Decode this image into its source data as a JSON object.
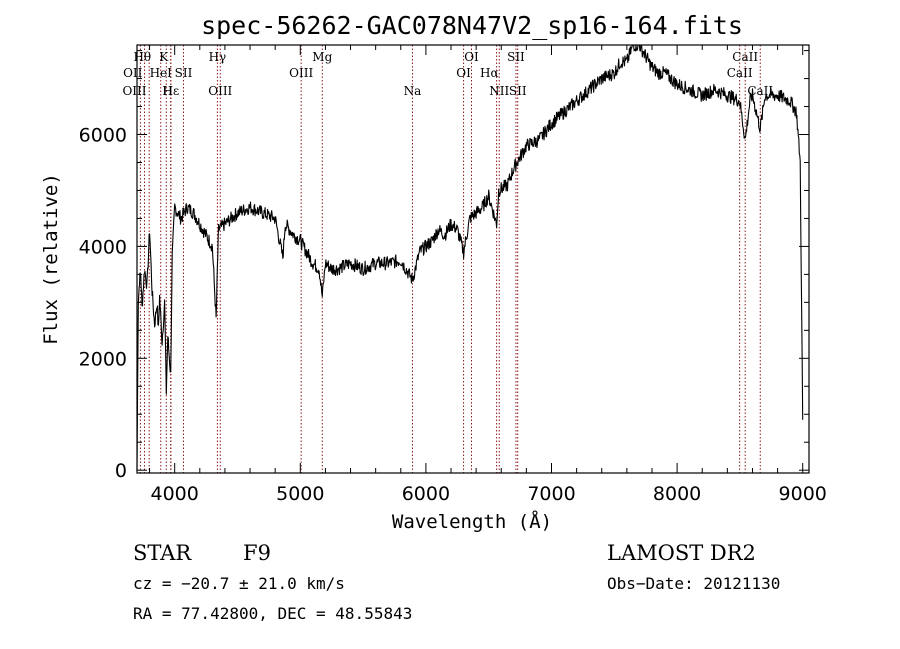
{
  "chart_data": {
    "type": "line",
    "title": "spec-56262-GAC078N47V2_sp16-164.fits",
    "xlabel": "Wavelength (Å)",
    "ylabel": "Flux (relative)",
    "xlim": [
      3700,
      9050
    ],
    "ylim": [
      -50,
      7600
    ],
    "x_ticks": [
      {
        "value": 4000,
        "label": "4000"
      },
      {
        "value": 5000,
        "label": "5000"
      },
      {
        "value": 6000,
        "label": "6000"
      },
      {
        "value": 7000,
        "label": "7000"
      },
      {
        "value": 8000,
        "label": "8000"
      },
      {
        "value": 9000,
        "label": "9000"
      }
    ],
    "y_ticks": [
      {
        "value": 0,
        "label": "0"
      },
      {
        "value": 2000,
        "label": "2000"
      },
      {
        "value": 4000,
        "label": "4000"
      },
      {
        "value": 6000,
        "label": "6000"
      }
    ],
    "series": [
      {
        "x": [
          3700,
          3710,
          3720,
          3730,
          3740,
          3760,
          3780,
          3800,
          3820,
          3840,
          3860,
          3870,
          3880,
          3900,
          3920,
          3933,
          3945,
          3968,
          3980,
          4000,
          4050,
          4100,
          4150,
          4200,
          4250,
          4300,
          4330,
          4340,
          4350,
          4400,
          4500,
          4600,
          4700,
          4800,
          4861,
          4880,
          4950,
          5000,
          5050,
          5100,
          5150,
          5175,
          5200,
          5250,
          5300,
          5400,
          5500,
          5600,
          5700,
          5800,
          5893,
          5950,
          6000,
          6050,
          6100,
          6150,
          6200,
          6250,
          6300,
          6350,
          6400,
          6450,
          6500,
          6563,
          6580,
          6650,
          6700,
          6800,
          6900,
          7000,
          7100,
          7200,
          7300,
          7400,
          7500,
          7550,
          7600,
          7650,
          7700,
          7750,
          7800,
          7850,
          7900,
          8000,
          8100,
          8200,
          8300,
          8400,
          8498,
          8542,
          8580,
          8600,
          8662,
          8700,
          8800,
          8900,
          8950,
          8980,
          9000
        ],
        "y": [
          0,
          3000,
          3400,
          3500,
          2900,
          3600,
          3300,
          4300,
          3200,
          2600,
          3000,
          2500,
          3100,
          2300,
          3000,
          1400,
          2400,
          1700,
          3800,
          4700,
          4500,
          4700,
          4600,
          4400,
          4200,
          4000,
          2700,
          3600,
          4300,
          4400,
          4600,
          4700,
          4600,
          4500,
          3800,
          4400,
          4200,
          4100,
          3900,
          3700,
          3600,
          3100,
          3700,
          3600,
          3600,
          3700,
          3600,
          3700,
          3700,
          3750,
          3400,
          3900,
          4000,
          4100,
          4300,
          4200,
          4400,
          4300,
          3900,
          4500,
          4600,
          4700,
          4900,
          4400,
          5000,
          5100,
          5400,
          5800,
          5900,
          6200,
          6400,
          6600,
          6800,
          7000,
          7100,
          7300,
          7300,
          7600,
          7600,
          7400,
          7200,
          7100,
          7100,
          6900,
          6800,
          6700,
          6800,
          6700,
          6600,
          5900,
          6600,
          6700,
          6100,
          6700,
          6700,
          6600,
          6400,
          5500,
          900
        ]
      }
    ],
    "spectral_lines": [
      {
        "label": "Hθ",
        "x": 3797,
        "row": 1,
        "side": "right"
      },
      {
        "label": "OII",
        "x": 3727,
        "row": 2,
        "side": "right"
      },
      {
        "label": "OIII",
        "x": 3760,
        "row": 3,
        "side": "right"
      },
      {
        "label": "HeI",
        "x": 3889,
        "row": 2,
        "side": "left"
      },
      {
        "label": "K",
        "x": 3933,
        "row": 1,
        "side": "right"
      },
      {
        "label": "H",
        "x": 3968,
        "row": 3,
        "side": "right"
      },
      {
        "label": "Hε",
        "x": 3970,
        "row": 3,
        "side": "left"
      },
      {
        "label": "SII",
        "x": 4070,
        "row": 2,
        "side": "left"
      },
      {
        "label": "Hγ",
        "x": 4340,
        "row": 1,
        "side": "left"
      },
      {
        "label": "OIII",
        "x": 4363,
        "row": 3,
        "side": "left"
      },
      {
        "label": "OIII",
        "x": 5007,
        "row": 2,
        "side": "left"
      },
      {
        "label": "Mg",
        "x": 5175,
        "row": 1,
        "side": "left"
      },
      {
        "label": "Na",
        "x": 5893,
        "row": 3,
        "side": "left"
      },
      {
        "label": "OI",
        "x": 6300,
        "row": 2,
        "side": "left"
      },
      {
        "label": "OI",
        "x": 6363,
        "row": 1,
        "side": "left"
      },
      {
        "label": "Hα",
        "x": 6563,
        "row": 2,
        "side": "right"
      },
      {
        "label": "NII",
        "x": 6584,
        "row": 3,
        "side": "left"
      },
      {
        "label": "SII",
        "x": 6717,
        "row": 1,
        "side": "left"
      },
      {
        "label": "SII",
        "x": 6731,
        "row": 3,
        "side": "left"
      },
      {
        "label": "CaII",
        "x": 8498,
        "row": 2,
        "side": "left"
      },
      {
        "label": "CaII",
        "x": 8542,
        "row": 1,
        "side": "left"
      },
      {
        "label": "CaII",
        "x": 8662,
        "row": 3,
        "side": "left"
      }
    ],
    "grid": false,
    "line_color": "#000000",
    "marker_color": "#8b1a1a"
  },
  "footer": {
    "object_class": "STAR",
    "subclass": "F9",
    "survey": "LAMOST DR2",
    "redshift": "cz = −20.7 ± 21.0 km/s",
    "obs_date": "Obs−Date: 20121130",
    "coords": "RA =  77.42800, DEC =  48.55843"
  }
}
